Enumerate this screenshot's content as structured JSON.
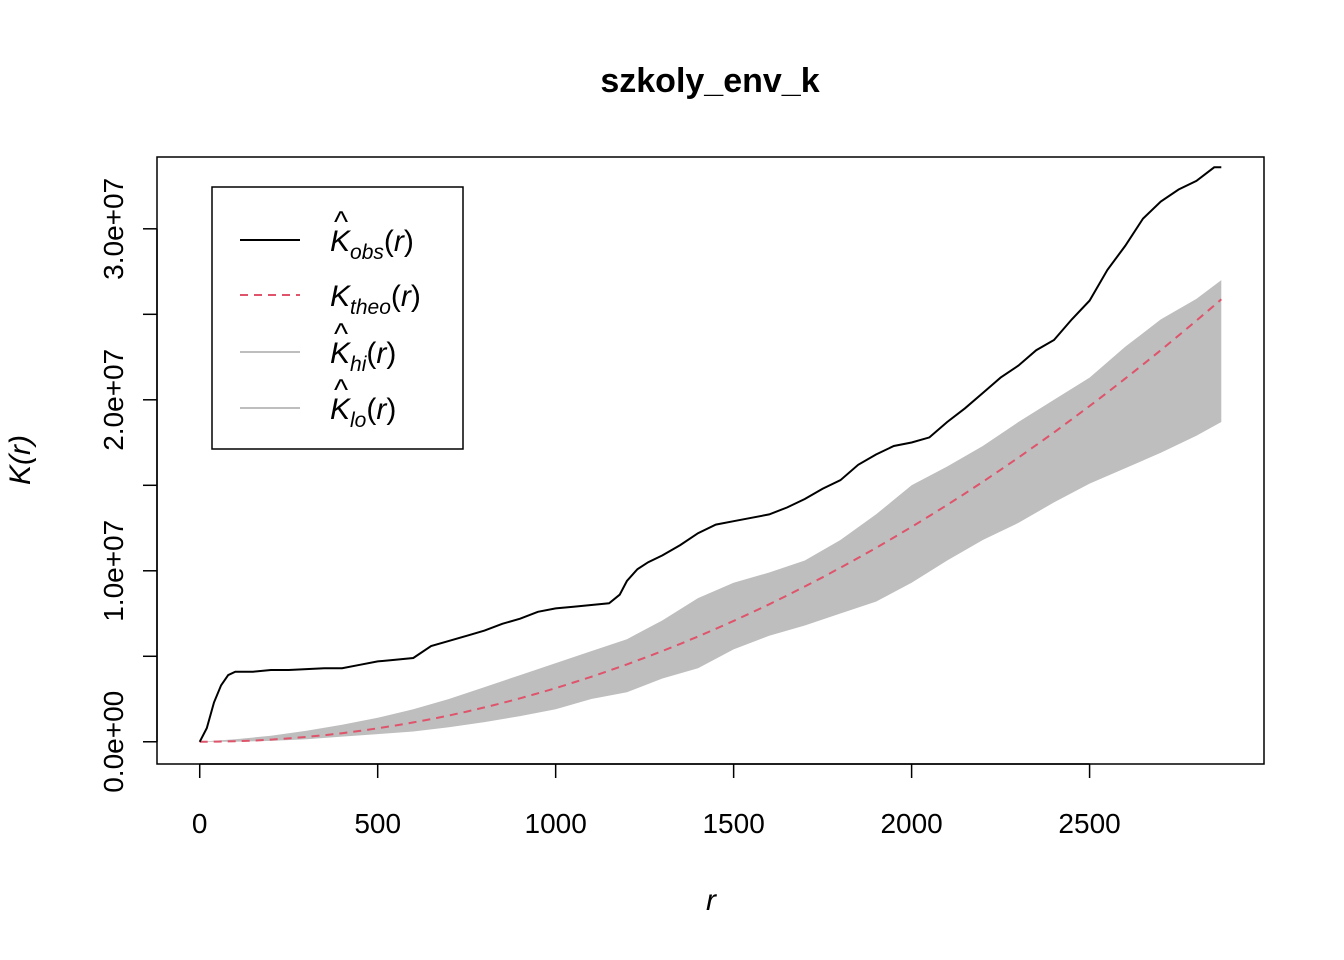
{
  "chart_data": {
    "type": "line",
    "title": "szkoly_env_k",
    "xlabel": "r",
    "ylabel": "K(r)",
    "xlim": [
      -120,
      2990
    ],
    "ylim": [
      -1300000,
      34200000
    ],
    "x_ticks": [
      0,
      500,
      1000,
      1500,
      2000,
      2500
    ],
    "x_tick_labels": [
      "0",
      "500",
      "1000",
      "1500",
      "2000",
      "2500"
    ],
    "y_ticks": [
      0,
      5000000,
      10000000,
      15000000,
      20000000,
      25000000,
      30000000
    ],
    "y_tick_labels": [
      "0.0e+00",
      "",
      "1.0e+07",
      "",
      "2.0e+07",
      "",
      "3.0e+07"
    ],
    "grid": false,
    "legend_position": "top-left",
    "colors": {
      "obs": "#000000",
      "theo": "#DF536B",
      "envelope": "#BEBEBE"
    },
    "legend": [
      {
        "base": "K",
        "hat": true,
        "sub": "obs",
        "arg": "(r)",
        "style": "solid",
        "color": "#000000"
      },
      {
        "base": "K",
        "hat": false,
        "sub": "theo",
        "arg": "(r)",
        "style": "dashed",
        "color": "#DF536B"
      },
      {
        "base": "K",
        "hat": true,
        "sub": "hi",
        "arg": "(r)",
        "style": "solid",
        "color": "#BEBEBE"
      },
      {
        "base": "K",
        "hat": true,
        "sub": "lo",
        "arg": "(r)",
        "style": "solid",
        "color": "#BEBEBE"
      }
    ],
    "series": [
      {
        "name": "obs",
        "x": [
          0,
          20,
          40,
          60,
          80,
          100,
          150,
          200,
          250,
          300,
          350,
          400,
          450,
          500,
          550,
          600,
          650,
          700,
          750,
          800,
          850,
          900,
          950,
          1000,
          1050,
          1100,
          1150,
          1180,
          1200,
          1230,
          1260,
          1300,
          1350,
          1400,
          1450,
          1500,
          1550,
          1600,
          1650,
          1700,
          1750,
          1800,
          1850,
          1900,
          1950,
          2000,
          2050,
          2100,
          2150,
          2200,
          2250,
          2300,
          2350,
          2400,
          2450,
          2500,
          2550,
          2600,
          2650,
          2700,
          2750,
          2800,
          2850,
          2870
        ],
        "y": [
          0,
          800000,
          2300000,
          3300000,
          3900000,
          4100000,
          4100000,
          4200000,
          4200000,
          4250000,
          4300000,
          4300000,
          4500000,
          4700000,
          4800000,
          4900000,
          5600000,
          5900000,
          6200000,
          6500000,
          6900000,
          7200000,
          7600000,
          7800000,
          7900000,
          8000000,
          8100000,
          8600000,
          9400000,
          10100000,
          10500000,
          10900000,
          11500000,
          12200000,
          12700000,
          12900000,
          13100000,
          13300000,
          13700000,
          14200000,
          14800000,
          15300000,
          16200000,
          16800000,
          17300000,
          17500000,
          17800000,
          18700000,
          19500000,
          20400000,
          21300000,
          22000000,
          22900000,
          23500000,
          24700000,
          25800000,
          27600000,
          29000000,
          30600000,
          31600000,
          32300000,
          32800000,
          33600000,
          33600000
        ]
      },
      {
        "name": "theo",
        "x": [
          0,
          50,
          100,
          150,
          200,
          250,
          300,
          350,
          400,
          450,
          500,
          550,
          600,
          650,
          700,
          750,
          800,
          850,
          900,
          950,
          1000,
          1050,
          1100,
          1150,
          1200,
          1250,
          1300,
          1350,
          1400,
          1450,
          1500,
          1550,
          1600,
          1650,
          1700,
          1750,
          1800,
          1850,
          1900,
          1950,
          2000,
          2050,
          2100,
          2150,
          2200,
          2250,
          2300,
          2350,
          2400,
          2450,
          2500,
          2550,
          2600,
          2650,
          2700,
          2750,
          2800,
          2850,
          2870
        ],
        "y": [
          0,
          7854,
          31416,
          70686,
          125664,
          196350,
          282743,
          384845,
          502655,
          636173,
          785398,
          950332,
          1130973,
          1327323,
          1539380,
          1767146,
          2010619,
          2269801,
          2544690,
          2835287,
          3141593,
          3463606,
          3801327,
          4154756,
          4523893,
          4908739,
          5309292,
          5725553,
          6157522,
          6605199,
          7068583,
          7547676,
          8042477,
          8552986,
          9079203,
          9621128,
          10178760,
          10752101,
          11341149,
          11945906,
          12566371,
          13202543,
          13854424,
          14522012,
          15205308,
          15904313,
          16619025,
          17349445,
          18095574,
          18857410,
          19634954,
          20428206,
          21237166,
          22061834,
          22902210,
          23758294,
          24630086,
          25517586,
          25876976
        ]
      },
      {
        "name": "hi",
        "x": [
          0,
          100,
          200,
          300,
          400,
          500,
          600,
          700,
          800,
          900,
          1000,
          1100,
          1200,
          1300,
          1400,
          1500,
          1600,
          1700,
          1800,
          1900,
          2000,
          2100,
          2200,
          2300,
          2400,
          2500,
          2600,
          2700,
          2800,
          2870
        ],
        "y": [
          0,
          150000,
          350000,
          650000,
          1000000,
          1400000,
          1900000,
          2500000,
          3200000,
          3900000,
          4600000,
          5300000,
          6000000,
          7100000,
          8400000,
          9300000,
          9900000,
          10600000,
          11800000,
          13300000,
          15000000,
          16100000,
          17300000,
          18700000,
          20000000,
          21300000,
          23100000,
          24700000,
          25900000,
          27000000
        ]
      },
      {
        "name": "lo",
        "x": [
          0,
          100,
          200,
          300,
          400,
          500,
          600,
          700,
          800,
          900,
          1000,
          1100,
          1200,
          1300,
          1400,
          1500,
          1600,
          1700,
          1800,
          1900,
          2000,
          2100,
          2200,
          2300,
          2400,
          2500,
          2600,
          2700,
          2800,
          2870
        ],
        "y": [
          0,
          0,
          50000,
          150000,
          300000,
          450000,
          600000,
          850000,
          1150000,
          1500000,
          1900000,
          2500000,
          2900000,
          3700000,
          4300000,
          5400000,
          6200000,
          6800000,
          7500000,
          8200000,
          9300000,
          10600000,
          11800000,
          12800000,
          14000000,
          15100000,
          16000000,
          16900000,
          17900000,
          18700000
        ]
      }
    ]
  }
}
